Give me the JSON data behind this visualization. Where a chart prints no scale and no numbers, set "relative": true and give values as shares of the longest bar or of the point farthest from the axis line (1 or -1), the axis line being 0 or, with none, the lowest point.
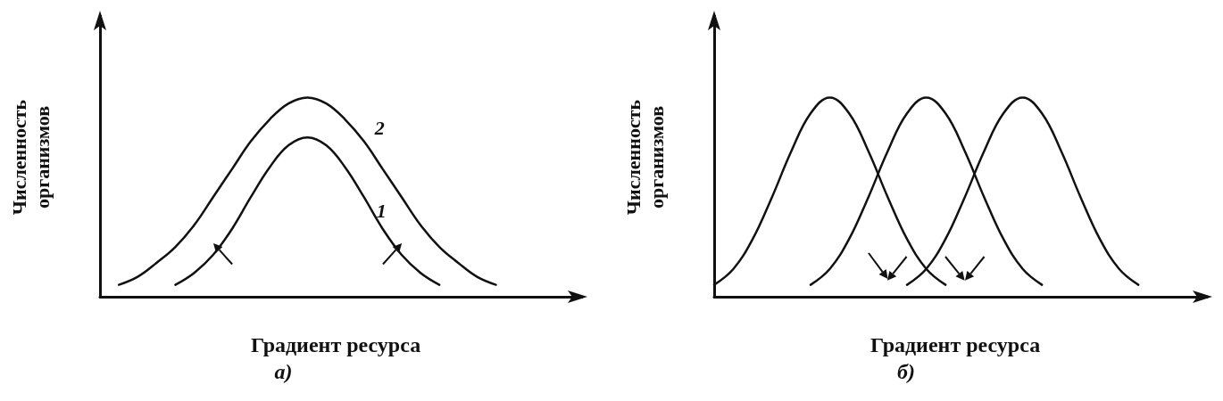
{
  "chart_data": [
    {
      "type": "line",
      "relative": true,
      "xlabel": "Градиент ресурса",
      "ylabel": "Численность организмов",
      "annotations": [
        "а)"
      ],
      "marker": "none",
      "grid": false,
      "legend": false,
      "categories": [
        null,
        null,
        null,
        null,
        null,
        null,
        null,
        null,
        null,
        null,
        null,
        null,
        null,
        null,
        null,
        null,
        null,
        null,
        null,
        null,
        null,
        null,
        null,
        null,
        null,
        null
      ],
      "series": [
        {
          "name": "2",
          "color": "#111111",
          "values": [
            null,
            0.06,
            0.1,
            0.17,
            0.25,
            0.36,
            0.5,
            0.64,
            0.78,
            0.89,
            0.97,
            1,
            0.97,
            0.89,
            0.78,
            0.64,
            0.5,
            0.36,
            0.25,
            0.17,
            0.1,
            0.06,
            null,
            null,
            null,
            null
          ]
        },
        {
          "name": "1",
          "color": "#111111",
          "values": [
            null,
            null,
            null,
            null,
            0.06,
            0.12,
            0.21,
            0.34,
            0.5,
            0.65,
            0.76,
            0.8,
            0.76,
            0.65,
            0.5,
            0.34,
            0.21,
            0.12,
            0.06,
            null,
            null,
            null,
            null,
            null,
            null,
            null
          ]
        }
      ]
    },
    {
      "type": "line",
      "relative": true,
      "xlabel": "Градиент ресурса",
      "ylabel": "Численность организмов",
      "annotations": [
        "б)"
      ],
      "marker": "none",
      "grid": false,
      "legend": false,
      "categories": [
        null,
        null,
        null,
        null,
        null,
        null,
        null,
        null,
        null,
        null,
        null,
        null,
        null,
        null,
        null,
        null,
        null,
        null,
        null,
        null,
        null,
        null,
        null,
        null,
        null,
        null
      ],
      "series": [
        {
          "color": "#111111",
          "values": [
            0.06,
            0.14,
            0.29,
            0.5,
            0.73,
            0.92,
            1,
            0.92,
            0.73,
            0.5,
            0.29,
            0.14,
            0.06,
            null,
            null,
            null,
            null,
            null,
            null,
            null,
            null,
            null,
            null,
            null,
            null,
            null
          ]
        },
        {
          "color": "#111111",
          "values": [
            null,
            null,
            null,
            null,
            null,
            0.06,
            0.14,
            0.29,
            0.5,
            0.73,
            0.92,
            1,
            0.92,
            0.73,
            0.5,
            0.29,
            0.14,
            0.06,
            null,
            null,
            null,
            null,
            null,
            null,
            null,
            null
          ]
        },
        {
          "color": "#111111",
          "values": [
            null,
            null,
            null,
            null,
            null,
            null,
            null,
            null,
            null,
            null,
            0.06,
            0.14,
            0.29,
            0.5,
            0.73,
            0.92,
            1,
            0.92,
            0.73,
            0.5,
            0.29,
            0.14,
            0.06,
            null,
            null,
            null
          ]
        }
      ]
    }
  ]
}
